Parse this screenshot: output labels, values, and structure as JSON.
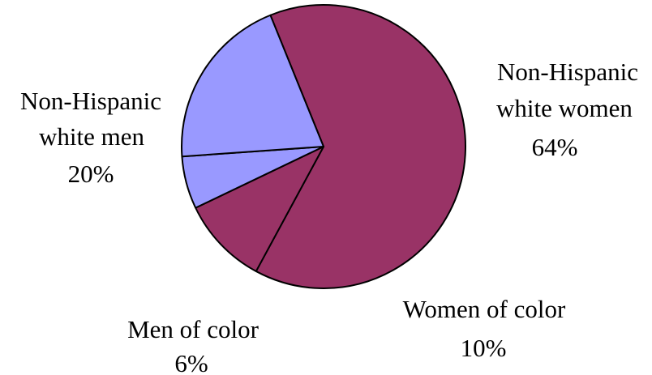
{
  "chart_data": {
    "type": "pie",
    "title": "",
    "start_angle_deg": -112,
    "direction": "clockwise",
    "slices": [
      {
        "label_lines": [
          "Non-Hispanic",
          "white women"
        ],
        "value": 64,
        "value_label": "64%",
        "color": "#993366"
      },
      {
        "label_lines": [
          "Women of color"
        ],
        "value": 10,
        "value_label": "10%",
        "color": "#993366"
      },
      {
        "label_lines": [
          "Men of color"
        ],
        "value": 6,
        "value_label": "6%",
        "color": "#9999ff"
      },
      {
        "label_lines": [
          "Non-Hispanic",
          "white men"
        ],
        "value": 20,
        "value_label": "20%",
        "color": "#9999ff"
      }
    ]
  }
}
